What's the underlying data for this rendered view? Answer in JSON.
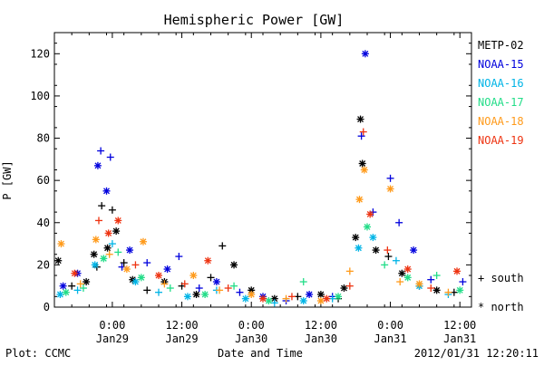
{
  "chart_data": {
    "type": "scatter",
    "title": "Hemispheric Power [GW]",
    "ylabel": "P [GW]",
    "xlabel": "Date and Time",
    "ylim": [
      0,
      130
    ],
    "y_ticks": [
      0,
      20,
      40,
      60,
      80,
      100,
      120
    ],
    "xlim": [
      "2012-01-28 14:00",
      "2012-01-31 14:00"
    ],
    "x_ticks": [
      {
        "x": "2012-01-29 00:00",
        "line1": "0:00",
        "line2": "Jan29"
      },
      {
        "x": "2012-01-29 12:00",
        "line1": "12:00",
        "line2": "Jan29"
      },
      {
        "x": "2012-01-30 00:00",
        "line1": "0:00",
        "line2": "Jan30"
      },
      {
        "x": "2012-01-30 12:00",
        "line1": "12:00",
        "line2": "Jan30"
      },
      {
        "x": "2012-01-31 00:00",
        "line1": "0:00",
        "line2": "Jan31"
      },
      {
        "x": "2012-01-31 12:00",
        "line1": "12:00",
        "line2": "Jan31"
      }
    ],
    "legend": {
      "placement": "right",
      "south_label": "+ south",
      "north_label": "* north"
    },
    "footer": {
      "left": "Plot: CCMC",
      "center": "Date and Time",
      "right": "2012/01/31 12:20:11"
    },
    "series": [
      {
        "name": "METP-02",
        "color": "#000000",
        "points": [
          {
            "x": "2012-01-28 14:40",
            "y": 22,
            "hemisphere": "north"
          },
          {
            "x": "2012-01-28 17:00",
            "y": 10,
            "hemisphere": "south"
          },
          {
            "x": "2012-01-28 19:30",
            "y": 12,
            "hemisphere": "north"
          },
          {
            "x": "2012-01-28 20:50",
            "y": 25,
            "hemisphere": "north"
          },
          {
            "x": "2012-01-28 21:20",
            "y": 19,
            "hemisphere": "south"
          },
          {
            "x": "2012-01-28 22:10",
            "y": 48,
            "hemisphere": "south"
          },
          {
            "x": "2012-01-28 23:10",
            "y": 28,
            "hemisphere": "north"
          },
          {
            "x": "2012-01-29 00:00",
            "y": 46,
            "hemisphere": "south"
          },
          {
            "x": "2012-01-29 00:40",
            "y": 36,
            "hemisphere": "north"
          },
          {
            "x": "2012-01-29 02:00",
            "y": 21,
            "hemisphere": "south"
          },
          {
            "x": "2012-01-29 03:30",
            "y": 13,
            "hemisphere": "north"
          },
          {
            "x": "2012-01-29 06:00",
            "y": 8,
            "hemisphere": "south"
          },
          {
            "x": "2012-01-29 09:00",
            "y": 12,
            "hemisphere": "north"
          },
          {
            "x": "2012-01-29 12:00",
            "y": 10,
            "hemisphere": "south"
          },
          {
            "x": "2012-01-29 14:30",
            "y": 6,
            "hemisphere": "north"
          },
          {
            "x": "2012-01-29 17:00",
            "y": 14,
            "hemisphere": "south"
          },
          {
            "x": "2012-01-29 19:00",
            "y": 29,
            "hemisphere": "south"
          },
          {
            "x": "2012-01-29 21:00",
            "y": 20,
            "hemisphere": "north"
          },
          {
            "x": "2012-01-30 00:00",
            "y": 8,
            "hemisphere": "north"
          },
          {
            "x": "2012-01-30 04:00",
            "y": 4,
            "hemisphere": "north"
          },
          {
            "x": "2012-01-30 08:00",
            "y": 5,
            "hemisphere": "south"
          },
          {
            "x": "2012-01-30 12:00",
            "y": 6,
            "hemisphere": "north"
          },
          {
            "x": "2012-01-30 15:00",
            "y": 4,
            "hemisphere": "south"
          },
          {
            "x": "2012-01-30 16:00",
            "y": 9,
            "hemisphere": "north"
          },
          {
            "x": "2012-01-30 18:00",
            "y": 33,
            "hemisphere": "north"
          },
          {
            "x": "2012-01-30 18:50",
            "y": 89,
            "hemisphere": "north"
          },
          {
            "x": "2012-01-30 19:10",
            "y": 68,
            "hemisphere": "north"
          },
          {
            "x": "2012-01-30 21:30",
            "y": 27,
            "hemisphere": "north"
          },
          {
            "x": "2012-01-30 23:40",
            "y": 24,
            "hemisphere": "south"
          },
          {
            "x": "2012-01-31 02:00",
            "y": 16,
            "hemisphere": "north"
          },
          {
            "x": "2012-01-31 05:00",
            "y": 10,
            "hemisphere": "south"
          },
          {
            "x": "2012-01-31 08:00",
            "y": 8,
            "hemisphere": "north"
          },
          {
            "x": "2012-01-31 11:00",
            "y": 7,
            "hemisphere": "south"
          }
        ]
      },
      {
        "name": "NOAA-15",
        "color": "#0000dd",
        "points": [
          {
            "x": "2012-01-28 15:30",
            "y": 10,
            "hemisphere": "north"
          },
          {
            "x": "2012-01-28 18:00",
            "y": 16,
            "hemisphere": "north"
          },
          {
            "x": "2012-01-28 21:30",
            "y": 67,
            "hemisphere": "north"
          },
          {
            "x": "2012-01-28 22:00",
            "y": 74,
            "hemisphere": "south"
          },
          {
            "x": "2012-01-28 23:00",
            "y": 55,
            "hemisphere": "north"
          },
          {
            "x": "2012-01-28 23:40",
            "y": 71,
            "hemisphere": "south"
          },
          {
            "x": "2012-01-29 01:40",
            "y": 19,
            "hemisphere": "south"
          },
          {
            "x": "2012-01-29 03:00",
            "y": 27,
            "hemisphere": "north"
          },
          {
            "x": "2012-01-29 06:00",
            "y": 21,
            "hemisphere": "south"
          },
          {
            "x": "2012-01-29 09:30",
            "y": 18,
            "hemisphere": "north"
          },
          {
            "x": "2012-01-29 11:30",
            "y": 24,
            "hemisphere": "south"
          },
          {
            "x": "2012-01-29 15:00",
            "y": 9,
            "hemisphere": "south"
          },
          {
            "x": "2012-01-29 18:00",
            "y": 12,
            "hemisphere": "north"
          },
          {
            "x": "2012-01-29 22:00",
            "y": 7,
            "hemisphere": "south"
          },
          {
            "x": "2012-01-30 02:00",
            "y": 5,
            "hemisphere": "north"
          },
          {
            "x": "2012-01-30 06:00",
            "y": 3,
            "hemisphere": "south"
          },
          {
            "x": "2012-01-30 10:00",
            "y": 6,
            "hemisphere": "north"
          },
          {
            "x": "2012-01-30 14:00",
            "y": 5,
            "hemisphere": "south"
          },
          {
            "x": "2012-01-30 19:00",
            "y": 81,
            "hemisphere": "south"
          },
          {
            "x": "2012-01-30 19:40",
            "y": 120,
            "hemisphere": "north"
          },
          {
            "x": "2012-01-30 21:00",
            "y": 45,
            "hemisphere": "south"
          },
          {
            "x": "2012-01-31 00:00",
            "y": 61,
            "hemisphere": "south"
          },
          {
            "x": "2012-01-31 01:30",
            "y": 40,
            "hemisphere": "south"
          },
          {
            "x": "2012-01-31 04:00",
            "y": 27,
            "hemisphere": "north"
          },
          {
            "x": "2012-01-31 07:00",
            "y": 13,
            "hemisphere": "south"
          },
          {
            "x": "2012-01-31 12:30",
            "y": 12,
            "hemisphere": "south"
          }
        ]
      },
      {
        "name": "NOAA-16",
        "color": "#00b4e6",
        "points": [
          {
            "x": "2012-01-28 15:00",
            "y": 6,
            "hemisphere": "north"
          },
          {
            "x": "2012-01-28 18:00",
            "y": 8,
            "hemisphere": "south"
          },
          {
            "x": "2012-01-28 21:00",
            "y": 20,
            "hemisphere": "north"
          },
          {
            "x": "2012-01-29 00:00",
            "y": 30,
            "hemisphere": "south"
          },
          {
            "x": "2012-01-29 04:00",
            "y": 12,
            "hemisphere": "north"
          },
          {
            "x": "2012-01-29 08:00",
            "y": 7,
            "hemisphere": "south"
          },
          {
            "x": "2012-01-29 13:00",
            "y": 5,
            "hemisphere": "north"
          },
          {
            "x": "2012-01-29 18:00",
            "y": 8,
            "hemisphere": "south"
          },
          {
            "x": "2012-01-29 23:00",
            "y": 4,
            "hemisphere": "north"
          },
          {
            "x": "2012-01-30 04:00",
            "y": 2,
            "hemisphere": "south"
          },
          {
            "x": "2012-01-30 09:00",
            "y": 3,
            "hemisphere": "north"
          },
          {
            "x": "2012-01-30 14:00",
            "y": 4,
            "hemisphere": "south"
          },
          {
            "x": "2012-01-30 18:30",
            "y": 28,
            "hemisphere": "north"
          },
          {
            "x": "2012-01-30 21:00",
            "y": 33,
            "hemisphere": "north"
          },
          {
            "x": "2012-01-31 01:00",
            "y": 22,
            "hemisphere": "south"
          },
          {
            "x": "2012-01-31 05:00",
            "y": 10,
            "hemisphere": "north"
          },
          {
            "x": "2012-01-31 10:00",
            "y": 6,
            "hemisphere": "south"
          }
        ]
      },
      {
        "name": "NOAA-17",
        "color": "#22dd88",
        "points": [
          {
            "x": "2012-01-28 16:00",
            "y": 7,
            "hemisphere": "north"
          },
          {
            "x": "2012-01-28 19:00",
            "y": 9,
            "hemisphere": "south"
          },
          {
            "x": "2012-01-28 22:30",
            "y": 23,
            "hemisphere": "north"
          },
          {
            "x": "2012-01-29 01:00",
            "y": 26,
            "hemisphere": "south"
          },
          {
            "x": "2012-01-29 05:00",
            "y": 14,
            "hemisphere": "north"
          },
          {
            "x": "2012-01-29 10:00",
            "y": 9,
            "hemisphere": "south"
          },
          {
            "x": "2012-01-29 16:00",
            "y": 6,
            "hemisphere": "north"
          },
          {
            "x": "2012-01-29 21:00",
            "y": 10,
            "hemisphere": "south"
          },
          {
            "x": "2012-01-30 03:00",
            "y": 3,
            "hemisphere": "north"
          },
          {
            "x": "2012-01-30 09:00",
            "y": 12,
            "hemisphere": "south"
          },
          {
            "x": "2012-01-30 15:00",
            "y": 5,
            "hemisphere": "north"
          },
          {
            "x": "2012-01-30 20:00",
            "y": 38,
            "hemisphere": "north"
          },
          {
            "x": "2012-01-30 23:00",
            "y": 20,
            "hemisphere": "south"
          },
          {
            "x": "2012-01-31 03:00",
            "y": 14,
            "hemisphere": "north"
          },
          {
            "x": "2012-01-31 08:00",
            "y": 15,
            "hemisphere": "south"
          },
          {
            "x": "2012-01-31 12:00",
            "y": 8,
            "hemisphere": "north"
          }
        ]
      },
      {
        "name": "NOAA-18",
        "color": "#ff9a1a",
        "points": [
          {
            "x": "2012-01-28 15:10",
            "y": 30,
            "hemisphere": "north"
          },
          {
            "x": "2012-01-28 18:30",
            "y": 11,
            "hemisphere": "south"
          },
          {
            "x": "2012-01-28 21:10",
            "y": 32,
            "hemisphere": "north"
          },
          {
            "x": "2012-01-28 23:30",
            "y": 25,
            "hemisphere": "south"
          },
          {
            "x": "2012-01-29 02:30",
            "y": 18,
            "hemisphere": "north"
          },
          {
            "x": "2012-01-29 05:20",
            "y": 31,
            "hemisphere": "north"
          },
          {
            "x": "2012-01-29 09:00",
            "y": 11,
            "hemisphere": "south"
          },
          {
            "x": "2012-01-29 14:00",
            "y": 15,
            "hemisphere": "north"
          },
          {
            "x": "2012-01-29 18:30",
            "y": 8,
            "hemisphere": "south"
          },
          {
            "x": "2012-01-30 00:00",
            "y": 6,
            "hemisphere": "north"
          },
          {
            "x": "2012-01-30 06:00",
            "y": 4,
            "hemisphere": "south"
          },
          {
            "x": "2012-01-30 12:00",
            "y": 3,
            "hemisphere": "north"
          },
          {
            "x": "2012-01-30 17:00",
            "y": 17,
            "hemisphere": "south"
          },
          {
            "x": "2012-01-30 18:40",
            "y": 51,
            "hemisphere": "north"
          },
          {
            "x": "2012-01-30 19:30",
            "y": 65,
            "hemisphere": "north"
          },
          {
            "x": "2012-01-31 00:00",
            "y": 56,
            "hemisphere": "north"
          },
          {
            "x": "2012-01-31 01:40",
            "y": 12,
            "hemisphere": "south"
          },
          {
            "x": "2012-01-31 05:00",
            "y": 11,
            "hemisphere": "north"
          },
          {
            "x": "2012-01-31 10:00",
            "y": 7,
            "hemisphere": "south"
          }
        ]
      },
      {
        "name": "NOAA-19",
        "color": "#ee3311",
        "points": [
          {
            "x": "2012-01-28 17:30",
            "y": 16,
            "hemisphere": "north"
          },
          {
            "x": "2012-01-28 21:40",
            "y": 41,
            "hemisphere": "south"
          },
          {
            "x": "2012-01-28 23:20",
            "y": 35,
            "hemisphere": "north"
          },
          {
            "x": "2012-01-29 01:00",
            "y": 41,
            "hemisphere": "north"
          },
          {
            "x": "2012-01-29 04:00",
            "y": 20,
            "hemisphere": "south"
          },
          {
            "x": "2012-01-29 08:00",
            "y": 15,
            "hemisphere": "north"
          },
          {
            "x": "2012-01-29 12:30",
            "y": 11,
            "hemisphere": "south"
          },
          {
            "x": "2012-01-29 16:30",
            "y": 22,
            "hemisphere": "north"
          },
          {
            "x": "2012-01-29 20:00",
            "y": 9,
            "hemisphere": "south"
          },
          {
            "x": "2012-01-30 02:00",
            "y": 4,
            "hemisphere": "north"
          },
          {
            "x": "2012-01-30 07:00",
            "y": 5,
            "hemisphere": "south"
          },
          {
            "x": "2012-01-30 13:00",
            "y": 4,
            "hemisphere": "north"
          },
          {
            "x": "2012-01-30 17:00",
            "y": 10,
            "hemisphere": "south"
          },
          {
            "x": "2012-01-30 19:20",
            "y": 83,
            "hemisphere": "south"
          },
          {
            "x": "2012-01-30 20:30",
            "y": 44,
            "hemisphere": "north"
          },
          {
            "x": "2012-01-30 23:30",
            "y": 27,
            "hemisphere": "south"
          },
          {
            "x": "2012-01-31 03:00",
            "y": 18,
            "hemisphere": "north"
          },
          {
            "x": "2012-01-31 07:00",
            "y": 9,
            "hemisphere": "south"
          },
          {
            "x": "2012-01-31 11:30",
            "y": 17,
            "hemisphere": "north"
          }
        ]
      }
    ]
  }
}
